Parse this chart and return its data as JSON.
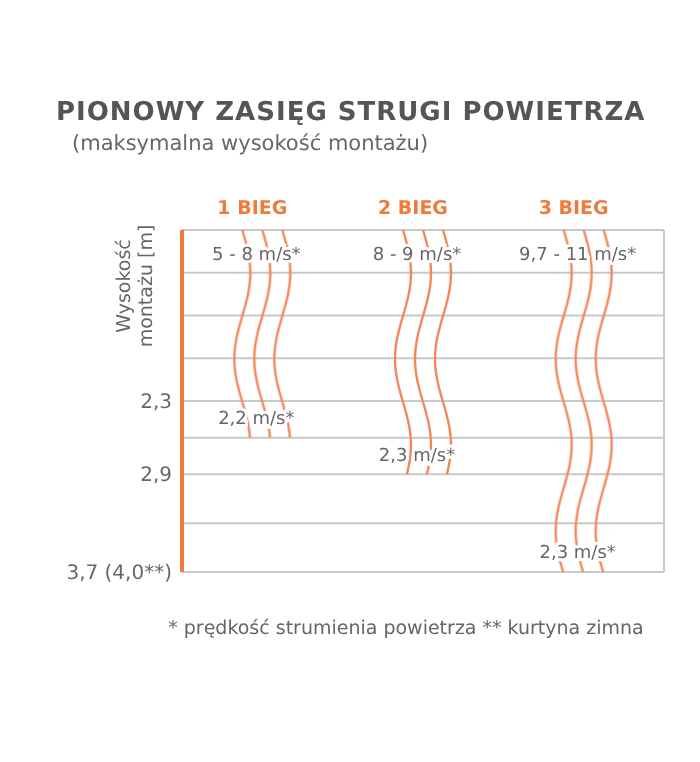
{
  "chart_data": {
    "type": "bar",
    "title": "PIONOWY ZASIĘG STRUGI POWIETRZA",
    "subtitle": "(maksymalna wysokość montażu)",
    "ylabel": "Wysokość montażu [m]",
    "categories": [
      "1 BIEG",
      "2 BIEG",
      "3 BIEG"
    ],
    "values": [
      2.6,
      2.9,
      3.7
    ],
    "color": "#f4875a",
    "ylim": [
      3.7,
      0.9
    ],
    "yticks": [
      {
        "value": 0.9,
        "label": null
      },
      {
        "value": 1.25,
        "label": null
      },
      {
        "value": 1.6,
        "label": null
      },
      {
        "value": 1.95,
        "label": null
      },
      {
        "value": 2.3,
        "label": "2,3"
      },
      {
        "value": 2.6,
        "label": null
      },
      {
        "value": 2.9,
        "label": "2,9"
      },
      {
        "value": 3.3,
        "label": null
      },
      {
        "value": 3.7,
        "label": "3,7 (4,0**)"
      }
    ],
    "grid": "y",
    "annotations": [
      "5 - 8 m/s*",
      "8 - 9 m/s*",
      "9,7 - 11 m/s*",
      {
        "text": "2,2 m/s*",
        "x": "1 BIEG",
        "y": 2.6
      },
      {
        "text": "2,3 m/s*",
        "x": "2 BIEG",
        "y": 2.9
      },
      {
        "text": "2,3 m/s*",
        "x": "3 BIEG",
        "y": 3.7
      },
      "* prędkość strumienia powietrza   ** kurtyna zimna"
    ]
  }
}
